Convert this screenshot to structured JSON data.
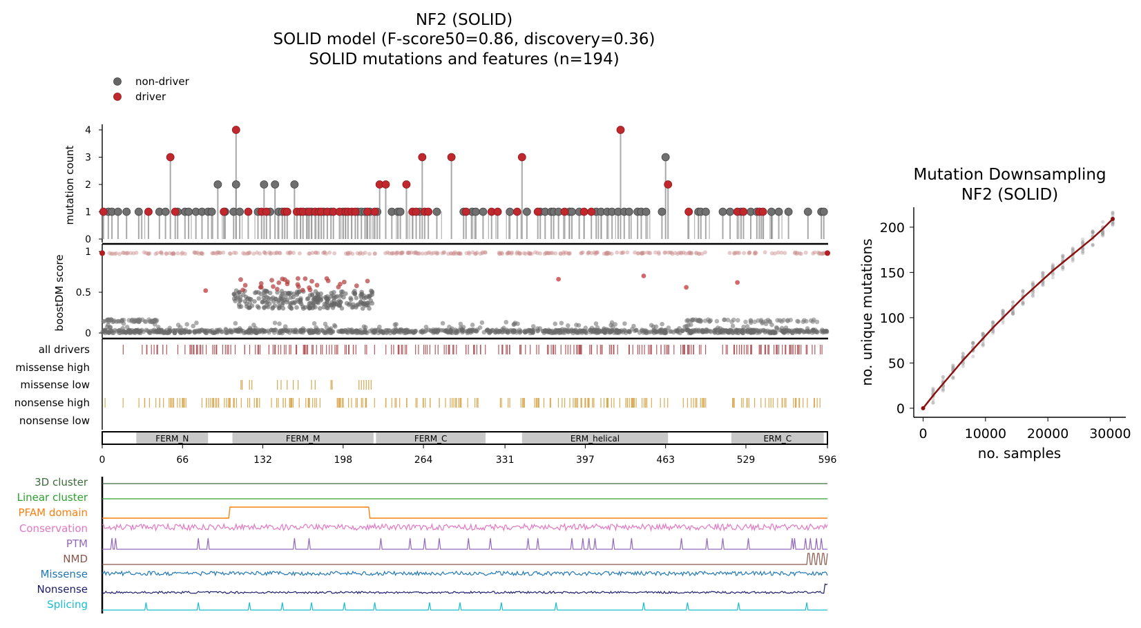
{
  "figure": {
    "title_lines": [
      "NF2 (SOLID)",
      "SOLID model (F-score50=0.86, discovery=0.36)",
      "SOLID mutations and features (n=194)"
    ],
    "legend": [
      {
        "label": "non-driver",
        "color": "#666666"
      },
      {
        "label": "driver",
        "color": "#c0282d"
      }
    ]
  },
  "chart_data": [
    {
      "type": "scatter",
      "name": "lollipop",
      "ylabel": "mutation count",
      "xlim": [
        0,
        596
      ],
      "ylim": [
        0,
        4
      ],
      "yticks": [
        "0",
        "1",
        "2",
        "3",
        "4"
      ],
      "drivers": [
        [
          1,
          1
        ],
        [
          38,
          1
        ],
        [
          56,
          3
        ],
        [
          60,
          1
        ],
        [
          100,
          1
        ],
        [
          110,
          4
        ],
        [
          120,
          1
        ],
        [
          131,
          1
        ],
        [
          135,
          1
        ],
        [
          150,
          1
        ],
        [
          152,
          1
        ],
        [
          160,
          1
        ],
        [
          163,
          1
        ],
        [
          165,
          1
        ],
        [
          170,
          1
        ],
        [
          175,
          1
        ],
        [
          178,
          1
        ],
        [
          180,
          1
        ],
        [
          185,
          1
        ],
        [
          190,
          1
        ],
        [
          195,
          1
        ],
        [
          200,
          1
        ],
        [
          202,
          1
        ],
        [
          205,
          1
        ],
        [
          208,
          1
        ],
        [
          218,
          1
        ],
        [
          224,
          1
        ],
        [
          228,
          2
        ],
        [
          233,
          2
        ],
        [
          250,
          2
        ],
        [
          255,
          1
        ],
        [
          258,
          1
        ],
        [
          263,
          3
        ],
        [
          265,
          1
        ],
        [
          268,
          1
        ],
        [
          287,
          3
        ],
        [
          299,
          1
        ],
        [
          320,
          1
        ],
        [
          325,
          1
        ],
        [
          341,
          1
        ],
        [
          345,
          3
        ],
        [
          358,
          1
        ],
        [
          380,
          1
        ],
        [
          396,
          1
        ],
        [
          402,
          1
        ],
        [
          426,
          4
        ],
        [
          465,
          2
        ],
        [
          482,
          1
        ],
        [
          522,
          1
        ],
        [
          527,
          1
        ],
        [
          540,
          1
        ],
        [
          543,
          1
        ]
      ],
      "nondrivers": [
        [
          5,
          1
        ],
        [
          8,
          1
        ],
        [
          13,
          1
        ],
        [
          20,
          1
        ],
        [
          30,
          1
        ],
        [
          47,
          1
        ],
        [
          52,
          1
        ],
        [
          62,
          1
        ],
        [
          68,
          1
        ],
        [
          71,
          1
        ],
        [
          77,
          1
        ],
        [
          82,
          1
        ],
        [
          87,
          1
        ],
        [
          90,
          1
        ],
        [
          95,
          2
        ],
        [
          101,
          1
        ],
        [
          108,
          1
        ],
        [
          110,
          2
        ],
        [
          113,
          1
        ],
        [
          128,
          1
        ],
        [
          133,
          2
        ],
        [
          138,
          1
        ],
        [
          142,
          2
        ],
        [
          145,
          1
        ],
        [
          148,
          1
        ],
        [
          158,
          2
        ],
        [
          168,
          1
        ],
        [
          172,
          1
        ],
        [
          182,
          1
        ],
        [
          188,
          1
        ],
        [
          198,
          1
        ],
        [
          210,
          1
        ],
        [
          213,
          1
        ],
        [
          216,
          1
        ],
        [
          220,
          1
        ],
        [
          226,
          1
        ],
        [
          238,
          1
        ],
        [
          243,
          1
        ],
        [
          245,
          1
        ],
        [
          261,
          1
        ],
        [
          275,
          1
        ],
        [
          297,
          1
        ],
        [
          304,
          1
        ],
        [
          307,
          1
        ],
        [
          313,
          1
        ],
        [
          335,
          1
        ],
        [
          349,
          1
        ],
        [
          360,
          1
        ],
        [
          364,
          1
        ],
        [
          369,
          1
        ],
        [
          371,
          1
        ],
        [
          375,
          1
        ],
        [
          384,
          1
        ],
        [
          386,
          1
        ],
        [
          392,
          1
        ],
        [
          406,
          1
        ],
        [
          410,
          1
        ],
        [
          415,
          1
        ],
        [
          419,
          1
        ],
        [
          424,
          1
        ],
        [
          429,
          1
        ],
        [
          433,
          1
        ],
        [
          440,
          1
        ],
        [
          443,
          1
        ],
        [
          447,
          1
        ],
        [
          460,
          1
        ],
        [
          463,
          3
        ],
        [
          490,
          1
        ],
        [
          492,
          1
        ],
        [
          496,
          1
        ],
        [
          510,
          1
        ],
        [
          516,
          1
        ],
        [
          525,
          1
        ],
        [
          533,
          1
        ],
        [
          538,
          1
        ],
        [
          550,
          1
        ],
        [
          556,
          1
        ],
        [
          564,
          1
        ],
        [
          580,
          1
        ],
        [
          591,
          1
        ],
        [
          593,
          1
        ]
      ]
    },
    {
      "type": "scatter",
      "name": "boostDM score",
      "ylabel": "boostDM score",
      "ylim": [
        0,
        1
      ],
      "yticks": [
        "0",
        "0.5",
        "1"
      ]
    },
    {
      "type": "table",
      "name": "driver tracks",
      "rows": [
        {
          "label": "all drivers",
          "color": "#b35a5f"
        },
        {
          "label": "missense high",
          "color": "#c48060"
        },
        {
          "label": "missense low",
          "color": "#d5a64f"
        },
        {
          "label": "nonsense high",
          "color": "#d9aa55"
        },
        {
          "label": "nonsense low",
          "color": "#d9aa55"
        }
      ]
    },
    {
      "type": "bar",
      "name": "domains",
      "domains": [
        {
          "label": "FERM_N",
          "start": 28,
          "end": 87
        },
        {
          "label": "FERM_M",
          "start": 107,
          "end": 223
        },
        {
          "label": "FERM_C",
          "start": 225,
          "end": 315
        },
        {
          "label": "ERM_helical",
          "start": 345,
          "end": 465
        },
        {
          "label": "ERM_C",
          "start": 517,
          "end": 593
        }
      ],
      "xticks": [
        "0",
        "66",
        "132",
        "198",
        "264",
        "331",
        "397",
        "463",
        "529",
        "596"
      ]
    },
    {
      "type": "line",
      "name": "features",
      "tracks": [
        {
          "label": "3D cluster",
          "color": "#3b6b3b"
        },
        {
          "label": "Linear cluster",
          "color": "#2ca02c"
        },
        {
          "label": "PFAM domain",
          "color": "#ff7f0e"
        },
        {
          "label": "Conservation",
          "color": "#e377c2"
        },
        {
          "label": "PTM",
          "color": "#9467bd"
        },
        {
          "label": "NMD",
          "color": "#8c564b"
        },
        {
          "label": "Missense",
          "color": "#1f77b4"
        },
        {
          "label": "Nonsense",
          "color": "#1b1b6b"
        },
        {
          "label": "Splicing",
          "color": "#17becf"
        }
      ]
    },
    {
      "type": "line",
      "title_lines": [
        "Mutation Downsampling",
        "NF2 (SOLID)"
      ],
      "xlabel": "no. samples",
      "ylabel": "no. unique mutations",
      "xlim": [
        -1500,
        32500
      ],
      "ylim": [
        -10,
        222
      ],
      "xticks": [
        "0",
        "10000",
        "20000",
        "30000"
      ],
      "yticks": [
        "0",
        "50",
        "100",
        "150",
        "200"
      ],
      "x": [
        0,
        1600,
        3200,
        4800,
        6400,
        8000,
        9600,
        11200,
        12800,
        14400,
        16000,
        17600,
        19200,
        20800,
        22400,
        24000,
        25600,
        27200,
        28800,
        30400
      ],
      "y": [
        0,
        14,
        27,
        40,
        53,
        65,
        77,
        89,
        100,
        111,
        122,
        132,
        142,
        152,
        161,
        170,
        179,
        188,
        198,
        209
      ],
      "line_color": "#8b1010"
    }
  ]
}
